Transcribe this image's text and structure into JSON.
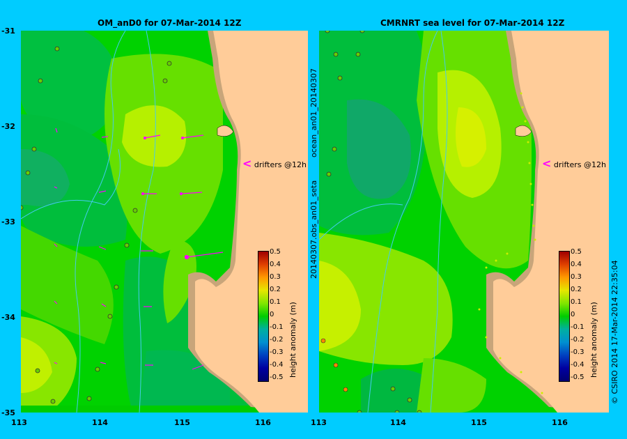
{
  "left_panel": {
    "title": "OM_anD0  for 07-Mar-2014 12Z",
    "y_ticks": [
      "-31",
      "-32",
      "-33",
      "-34",
      "-35"
    ],
    "x_ticks": [
      "113",
      "114",
      "115",
      "116"
    ],
    "drifter_label": "drifters @12h",
    "colorbar_label": "height anomaly (m)"
  },
  "right_panel": {
    "title": "CMRNRT sea level  for 07-Mar-2014 12Z",
    "x_ticks": [
      "113",
      "114",
      "115",
      "116"
    ],
    "drifter_label": "drifters @12h",
    "colorbar_label": "height anomaly (m)"
  },
  "colorbar_ticks": [
    "0.5",
    "0.4",
    "0.3",
    "0.2",
    "0.1",
    "0",
    "-0.1",
    "-0.2",
    "-0.3",
    "-0.4",
    "-0.5"
  ],
  "side_labels": {
    "model_run": "ocean_an01_20140307",
    "obs_run": "20140307.obs_an01_seta",
    "credit": "© CSIRO 2014   17-Mar-2014 22:35:04"
  },
  "colors": {
    "background": "#00ccff",
    "land": "#ffcc99",
    "shelf": "#c8a57a",
    "drifter": "#ff00ff",
    "bathymetry": "#44ccee"
  }
}
